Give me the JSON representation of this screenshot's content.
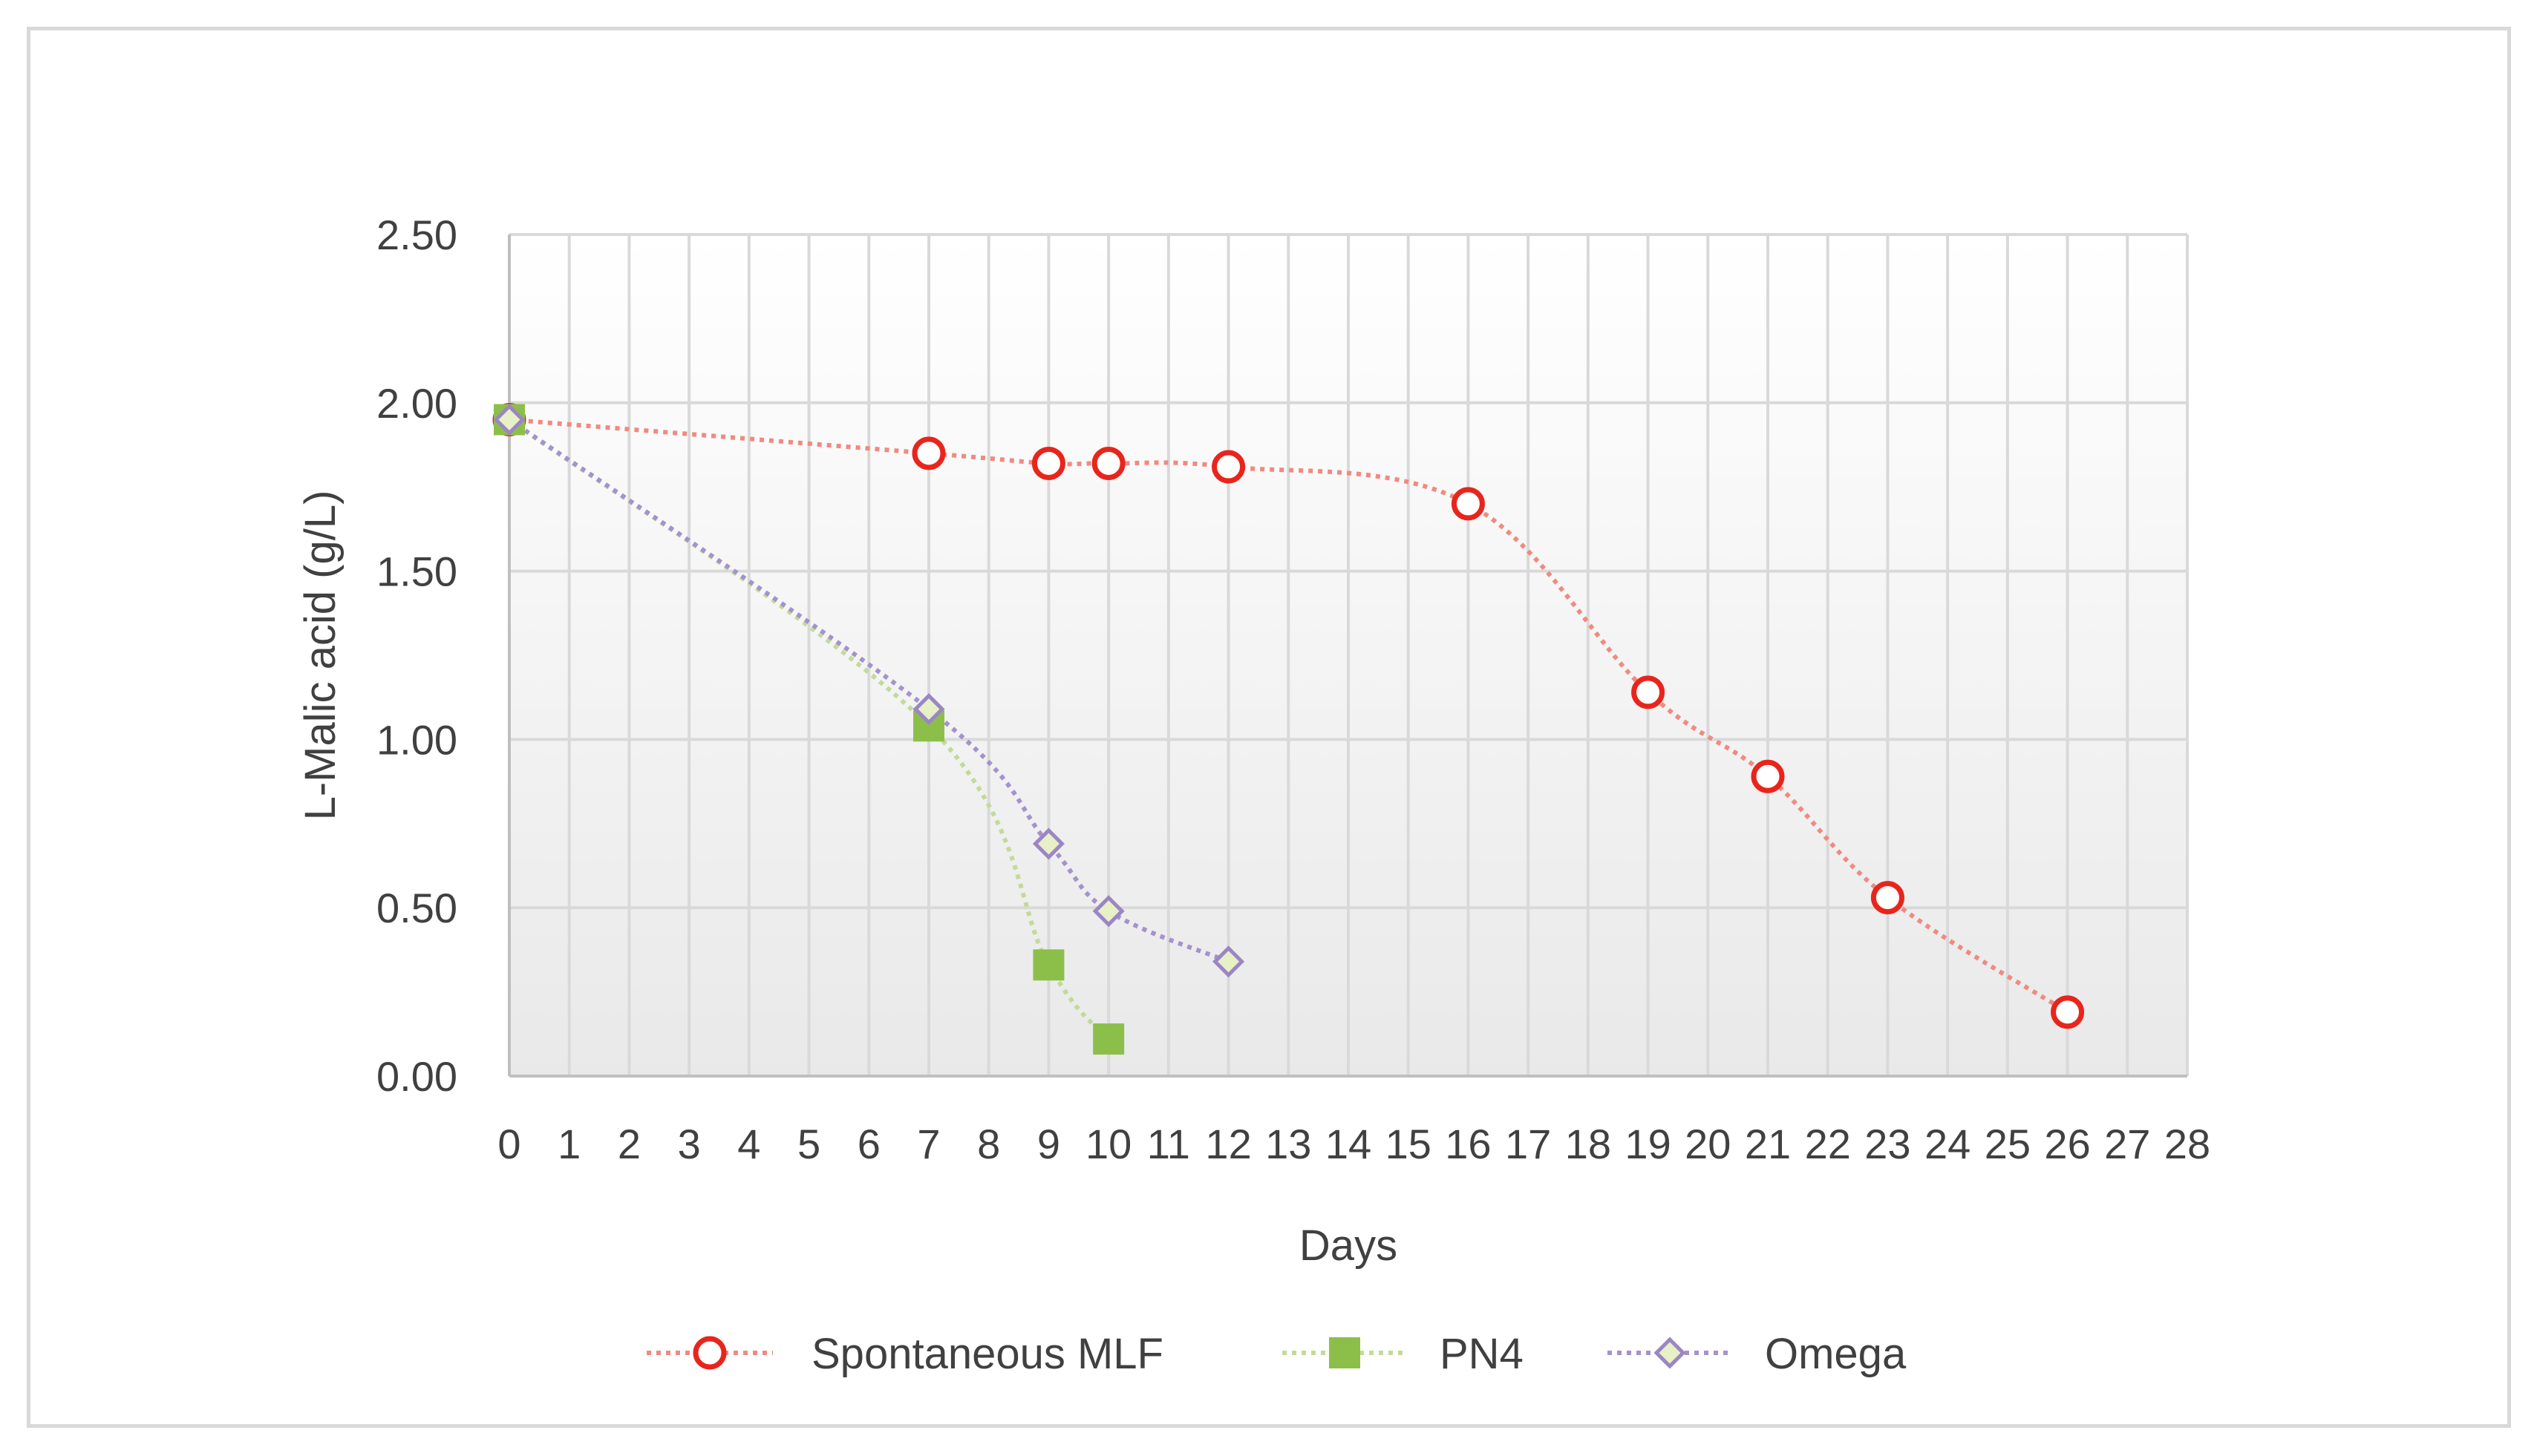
{
  "chart_data": {
    "type": "line",
    "title": "",
    "xlabel": "Days",
    "ylabel": "L-Malic acid (g/L)",
    "xlim": [
      0,
      28
    ],
    "ylim": [
      0,
      2.5
    ],
    "x_ticks": [
      "0",
      "1",
      "2",
      "3",
      "4",
      "5",
      "6",
      "7",
      "8",
      "9",
      "10",
      "11",
      "12",
      "13",
      "14",
      "15",
      "16",
      "17",
      "18",
      "19",
      "20",
      "21",
      "22",
      "23",
      "24",
      "25",
      "26",
      "27",
      "28"
    ],
    "y_ticks": [
      "0.00",
      "0.50",
      "1.00",
      "1.50",
      "2.00",
      "2.50"
    ],
    "y_tick_values": [
      0,
      0.5,
      1.0,
      1.5,
      2.0,
      2.5
    ],
    "grid": true,
    "legend_position": "bottom",
    "series": [
      {
        "name": "Spontaneous MLF",
        "marker": "open-circle",
        "color": "#e8251c",
        "line_color": "#f08a80",
        "x": [
          0,
          7,
          9,
          10,
          12,
          16,
          19,
          21,
          23,
          26
        ],
        "y": [
          1.95,
          1.85,
          1.82,
          1.82,
          1.81,
          1.7,
          1.14,
          0.89,
          0.53,
          0.19
        ]
      },
      {
        "name": "PN4",
        "marker": "filled-square",
        "color": "#8cbf4a",
        "line_color": "#c3da9a",
        "x": [
          0,
          7,
          9,
          10
        ],
        "y": [
          1.95,
          1.04,
          0.33,
          0.11
        ]
      },
      {
        "name": "Omega",
        "marker": "diamond",
        "color": "#9b86c4",
        "line_color": "#a592cc",
        "fill_color": "#e7f0c6",
        "x": [
          0,
          7,
          9,
          10,
          12
        ],
        "y": [
          1.95,
          1.09,
          0.69,
          0.49,
          0.34
        ]
      }
    ]
  }
}
